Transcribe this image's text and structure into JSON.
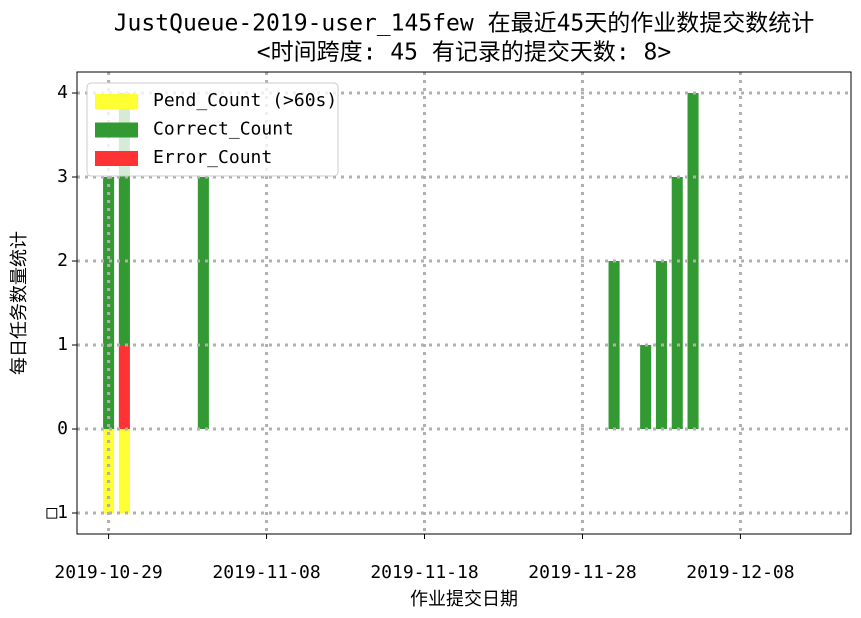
{
  "chart_data": {
    "type": "bar",
    "stacked": true,
    "title": "JustQueue-2019-user_145few 在最近45天的作业数提交数统计",
    "subtitle": "<时间跨度: 45  有记录的提交天数: 8>",
    "x_label": "作业提交日期",
    "y_label": "每日任务数量统计",
    "x": [
      "2019-10-29",
      "2019-10-30",
      "2019-11-04",
      "2019-11-30",
      "2019-12-02",
      "2019-12-03",
      "2019-12-04",
      "2019-12-05"
    ],
    "series": [
      {
        "name": "Pend_Count (>60s)",
        "color": "#ffff33",
        "values": [
          -1,
          -1,
          0,
          0,
          0,
          0,
          0,
          0
        ]
      },
      {
        "name": "Correct_Count",
        "color": "#339933",
        "values": [
          3,
          3,
          3,
          2,
          1,
          2,
          3,
          4
        ]
      },
      {
        "name": "Error_Count",
        "color": "#ff3333",
        "values": [
          0,
          1,
          0,
          0,
          0,
          0,
          0,
          0
        ]
      }
    ],
    "xlim": [
      "2019-10-27",
      "2019-12-15"
    ],
    "xticks": [
      "2019-10-29",
      "2019-11-08",
      "2019-11-18",
      "2019-11-28",
      "2019-12-08"
    ],
    "ylim": [
      -1.25,
      4.25
    ],
    "yticks": [
      {
        "value": -1,
        "label": "□1"
      },
      0,
      1,
      2,
      3,
      4
    ],
    "grid": true,
    "legend": "upper-left"
  }
}
